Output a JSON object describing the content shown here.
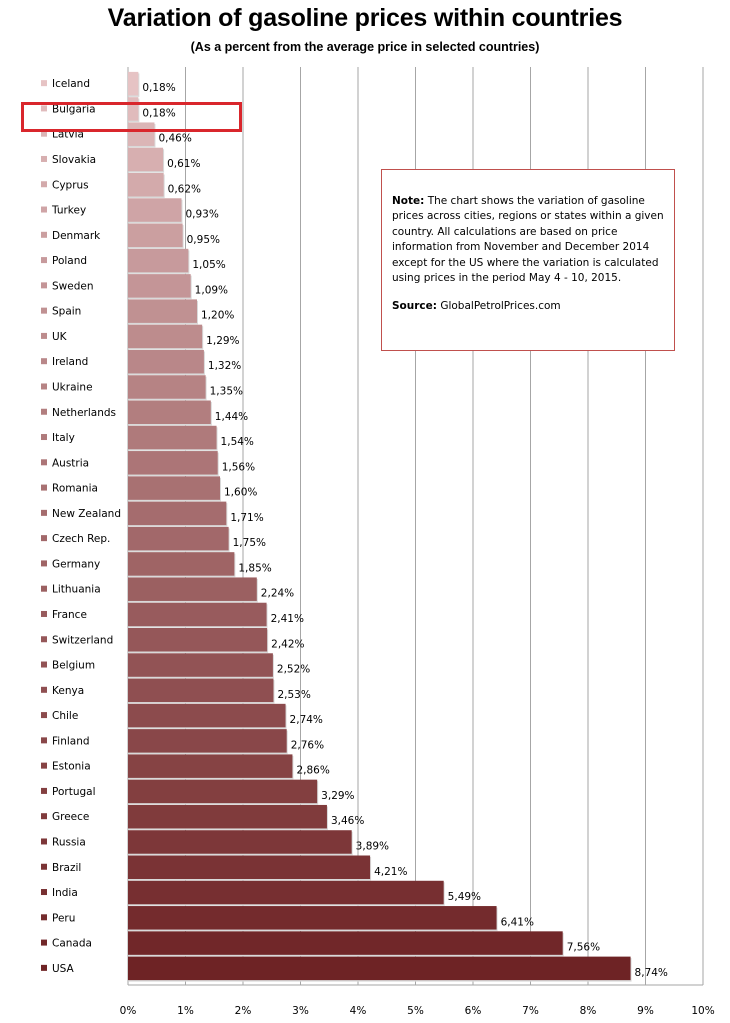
{
  "title": "Variation  of gasoline prices within countries",
  "subtitle": "(As a percent from the average price in selected countries)",
  "note": {
    "label": "Note:",
    "text": "The chart shows the variation of gasoline prices across cities, regions or states within a given country. All calculations are based on price information from November  and December  2014 except for the US where the variation is calculated using prices  in the period  May 4 - 10, 2015.",
    "source_label": "Source:",
    "source_text": "GlobalPetrolPrices.com"
  },
  "highlight": "Bulgaria",
  "chart_data": {
    "type": "bar",
    "orientation": "horizontal",
    "categories": [
      "Iceland",
      "Bulgaria",
      "Latvia",
      "Slovakia",
      "Cyprus",
      "Turkey",
      "Denmark",
      "Poland",
      "Sweden",
      "Spain",
      "UK",
      "Ireland",
      "Ukraine",
      "Netherlands",
      "Italy",
      "Austria",
      "Romania",
      "New Zealand",
      "Czech Rep.",
      "Germany",
      "Lithuania",
      "France",
      "Switzerland",
      "Belgium",
      "Kenya",
      "Chile",
      "Finland",
      "Estonia",
      "Portugal",
      "Greece",
      "Russia",
      "Brazil",
      "India",
      "Peru",
      "Canada",
      "USA"
    ],
    "values": [
      0.18,
      0.18,
      0.46,
      0.61,
      0.62,
      0.93,
      0.95,
      1.05,
      1.09,
      1.2,
      1.29,
      1.32,
      1.35,
      1.44,
      1.54,
      1.56,
      1.6,
      1.71,
      1.75,
      1.85,
      2.24,
      2.41,
      2.42,
      2.52,
      2.53,
      2.74,
      2.76,
      2.86,
      3.29,
      3.46,
      3.89,
      4.21,
      5.49,
      6.41,
      7.56,
      8.74
    ],
    "value_labels": [
      "0,18%",
      "0,18%",
      "0,46%",
      "0,61%",
      "0,62%",
      "0,93%",
      "0,95%",
      "1,05%",
      "1,09%",
      "1,20%",
      "1,29%",
      "1,32%",
      "1,35%",
      "1,44%",
      "1,54%",
      "1,56%",
      "1,60%",
      "1,71%",
      "1,75%",
      "1,85%",
      "2,24%",
      "2,41%",
      "2,42%",
      "2,52%",
      "2,53%",
      "2,74%",
      "2,76%",
      "2,86%",
      "3,29%",
      "3,46%",
      "3,89%",
      "4,21%",
      "5,49%",
      "6,41%",
      "7,56%",
      "8,74%"
    ],
    "x_ticks": [
      "0%",
      "1%",
      "2%",
      "3%",
      "4%",
      "5%",
      "6%",
      "7%",
      "8%",
      "9%",
      "10%"
    ],
    "xlim": [
      0,
      10
    ],
    "grid": "vertical",
    "color_light": "#e6c3c4",
    "color_dark": "#6e2325",
    "xlabel": "",
    "ylabel": ""
  }
}
